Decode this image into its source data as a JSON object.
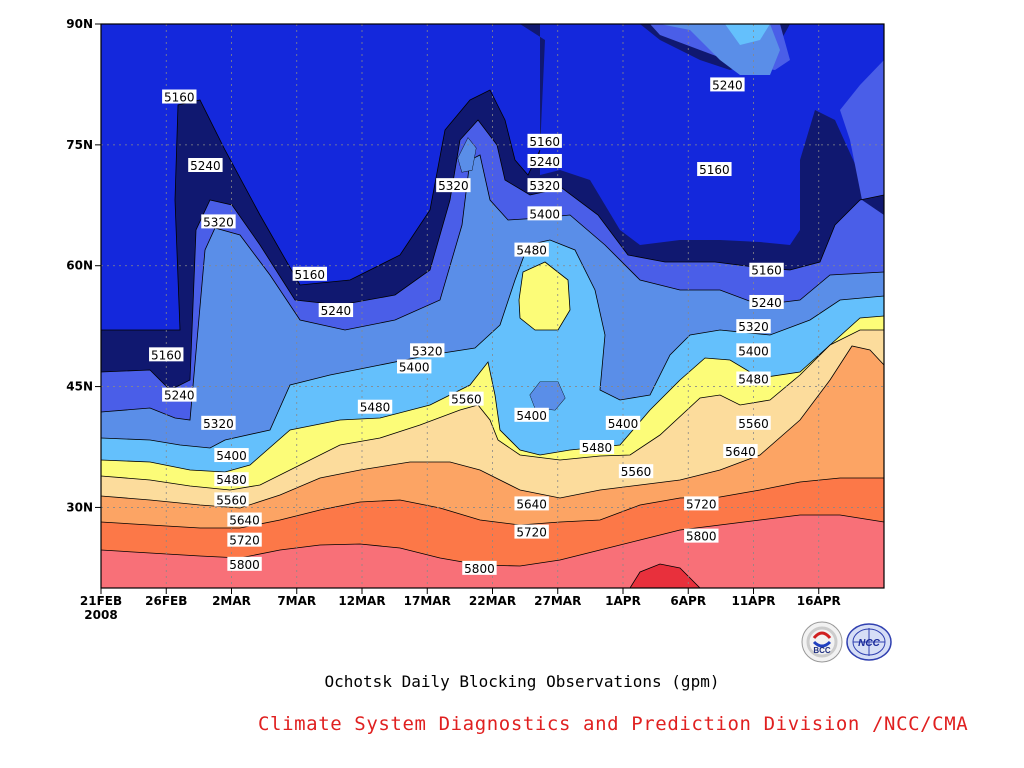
{
  "chart_data": {
    "type": "contour",
    "title": "Ochotsk Daily Blocking Observations (gpm)",
    "xaxis": {
      "tick_labels": [
        "21FEB",
        "26FEB",
        "2MAR",
        "7MAR",
        "12MAR",
        "17MAR",
        "22MAR",
        "27MAR",
        "1APR",
        "6APR",
        "11APR",
        "16APR"
      ],
      "first_tick_year": "2008",
      "range": [
        "2008-02-21",
        "2008-04-21"
      ]
    },
    "yaxis": {
      "tick_labels": [
        "90N",
        "75N",
        "60N",
        "45N",
        "30N"
      ],
      "tick_values": [
        90,
        75,
        60,
        45,
        30
      ],
      "range": [
        20,
        90
      ]
    },
    "grid": true,
    "contour_levels": [
      5160,
      5240,
      5320,
      5400,
      5480,
      5560,
      5640,
      5720,
      5800,
      5880
    ],
    "colors": {
      "below_5160": "#101870",
      "5160_5240": "#1428dc",
      "5240_5320": "#4a5ee8",
      "5320_5400": "#5a8ee8",
      "5400_5480": "#64c0fc",
      "5480_5560": "#fcfc78",
      "5560_5640": "#fcdc9c",
      "5640_5720": "#fca464",
      "5720_5800": "#fc7848",
      "5800_5880": "#f87078",
      "above_5880": "#e8303c"
    },
    "contour_labels": [
      {
        "value": "5160",
        "date": "2008-02-27",
        "lat": 81
      },
      {
        "value": "5240",
        "date": "2008-02-29",
        "lat": 72.5
      },
      {
        "value": "5320",
        "date": "2008-03-01",
        "lat": 65.5
      },
      {
        "value": "5160",
        "date": "2008-03-08",
        "lat": 59
      },
      {
        "value": "5240",
        "date": "2008-03-10",
        "lat": 54.5
      },
      {
        "value": "5320",
        "date": "2008-03-17",
        "lat": 49.5
      },
      {
        "value": "5400",
        "date": "2008-03-16",
        "lat": 47.5
      },
      {
        "value": "5480",
        "date": "2008-03-13",
        "lat": 42.5
      },
      {
        "value": "5560",
        "date": "2008-03-20",
        "lat": 43.5
      },
      {
        "value": "5320",
        "date": "2008-03-19",
        "lat": 70
      },
      {
        "value": "5160",
        "date": "2008-03-26",
        "lat": 75.5
      },
      {
        "value": "5240",
        "date": "2008-03-26",
        "lat": 73
      },
      {
        "value": "5320",
        "date": "2008-03-26",
        "lat": 70
      },
      {
        "value": "5400",
        "date": "2008-03-26",
        "lat": 66.5
      },
      {
        "value": "5480",
        "date": "2008-03-25",
        "lat": 62
      },
      {
        "value": "5400",
        "date": "2008-03-25",
        "lat": 41.5
      },
      {
        "value": "5480",
        "date": "2008-03-30",
        "lat": 37.5
      },
      {
        "value": "5560",
        "date": "2008-04-02",
        "lat": 34.5
      },
      {
        "value": "5400",
        "date": "2008-04-01",
        "lat": 40.5
      },
      {
        "value": "5640",
        "date": "2008-03-25",
        "lat": 30.5
      },
      {
        "value": "5720",
        "date": "2008-03-25",
        "lat": 27
      },
      {
        "value": "5800",
        "date": "2008-03-21",
        "lat": 22.5
      },
      {
        "value": "5160",
        "date": "2008-02-26",
        "lat": 49
      },
      {
        "value": "5240",
        "date": "2008-02-27",
        "lat": 44
      },
      {
        "value": "5320",
        "date": "2008-03-01",
        "lat": 40.5
      },
      {
        "value": "5400",
        "date": "2008-03-02",
        "lat": 36.5
      },
      {
        "value": "5480",
        "date": "2008-03-02",
        "lat": 33.5
      },
      {
        "value": "5560",
        "date": "2008-03-02",
        "lat": 31
      },
      {
        "value": "5640",
        "date": "2008-03-03",
        "lat": 28.5
      },
      {
        "value": "5720",
        "date": "2008-03-03",
        "lat": 26
      },
      {
        "value": "5800",
        "date": "2008-03-03",
        "lat": 23
      },
      {
        "value": "5240",
        "date": "2008-04-09",
        "lat": 82.5
      },
      {
        "value": "5160",
        "date": "2008-04-08",
        "lat": 72
      },
      {
        "value": "5160",
        "date": "2008-04-12",
        "lat": 59.5
      },
      {
        "value": "5240",
        "date": "2008-04-12",
        "lat": 55.5
      },
      {
        "value": "5320",
        "date": "2008-04-11",
        "lat": 52.5
      },
      {
        "value": "5400",
        "date": "2008-04-11",
        "lat": 49.5
      },
      {
        "value": "5480",
        "date": "2008-04-11",
        "lat": 46
      },
      {
        "value": "5560",
        "date": "2008-04-11",
        "lat": 40.5
      },
      {
        "value": "5640",
        "date": "2008-04-10",
        "lat": 37
      },
      {
        "value": "5720",
        "date": "2008-04-07",
        "lat": 30.5
      },
      {
        "value": "5800",
        "date": "2008-04-07",
        "lat": 26.5
      }
    ]
  },
  "credit": "Climate System Diagnostics and Prediction Division /NCC/CMA",
  "logos": {
    "bcc_text": "BCC",
    "ncc_text": "NCC"
  }
}
